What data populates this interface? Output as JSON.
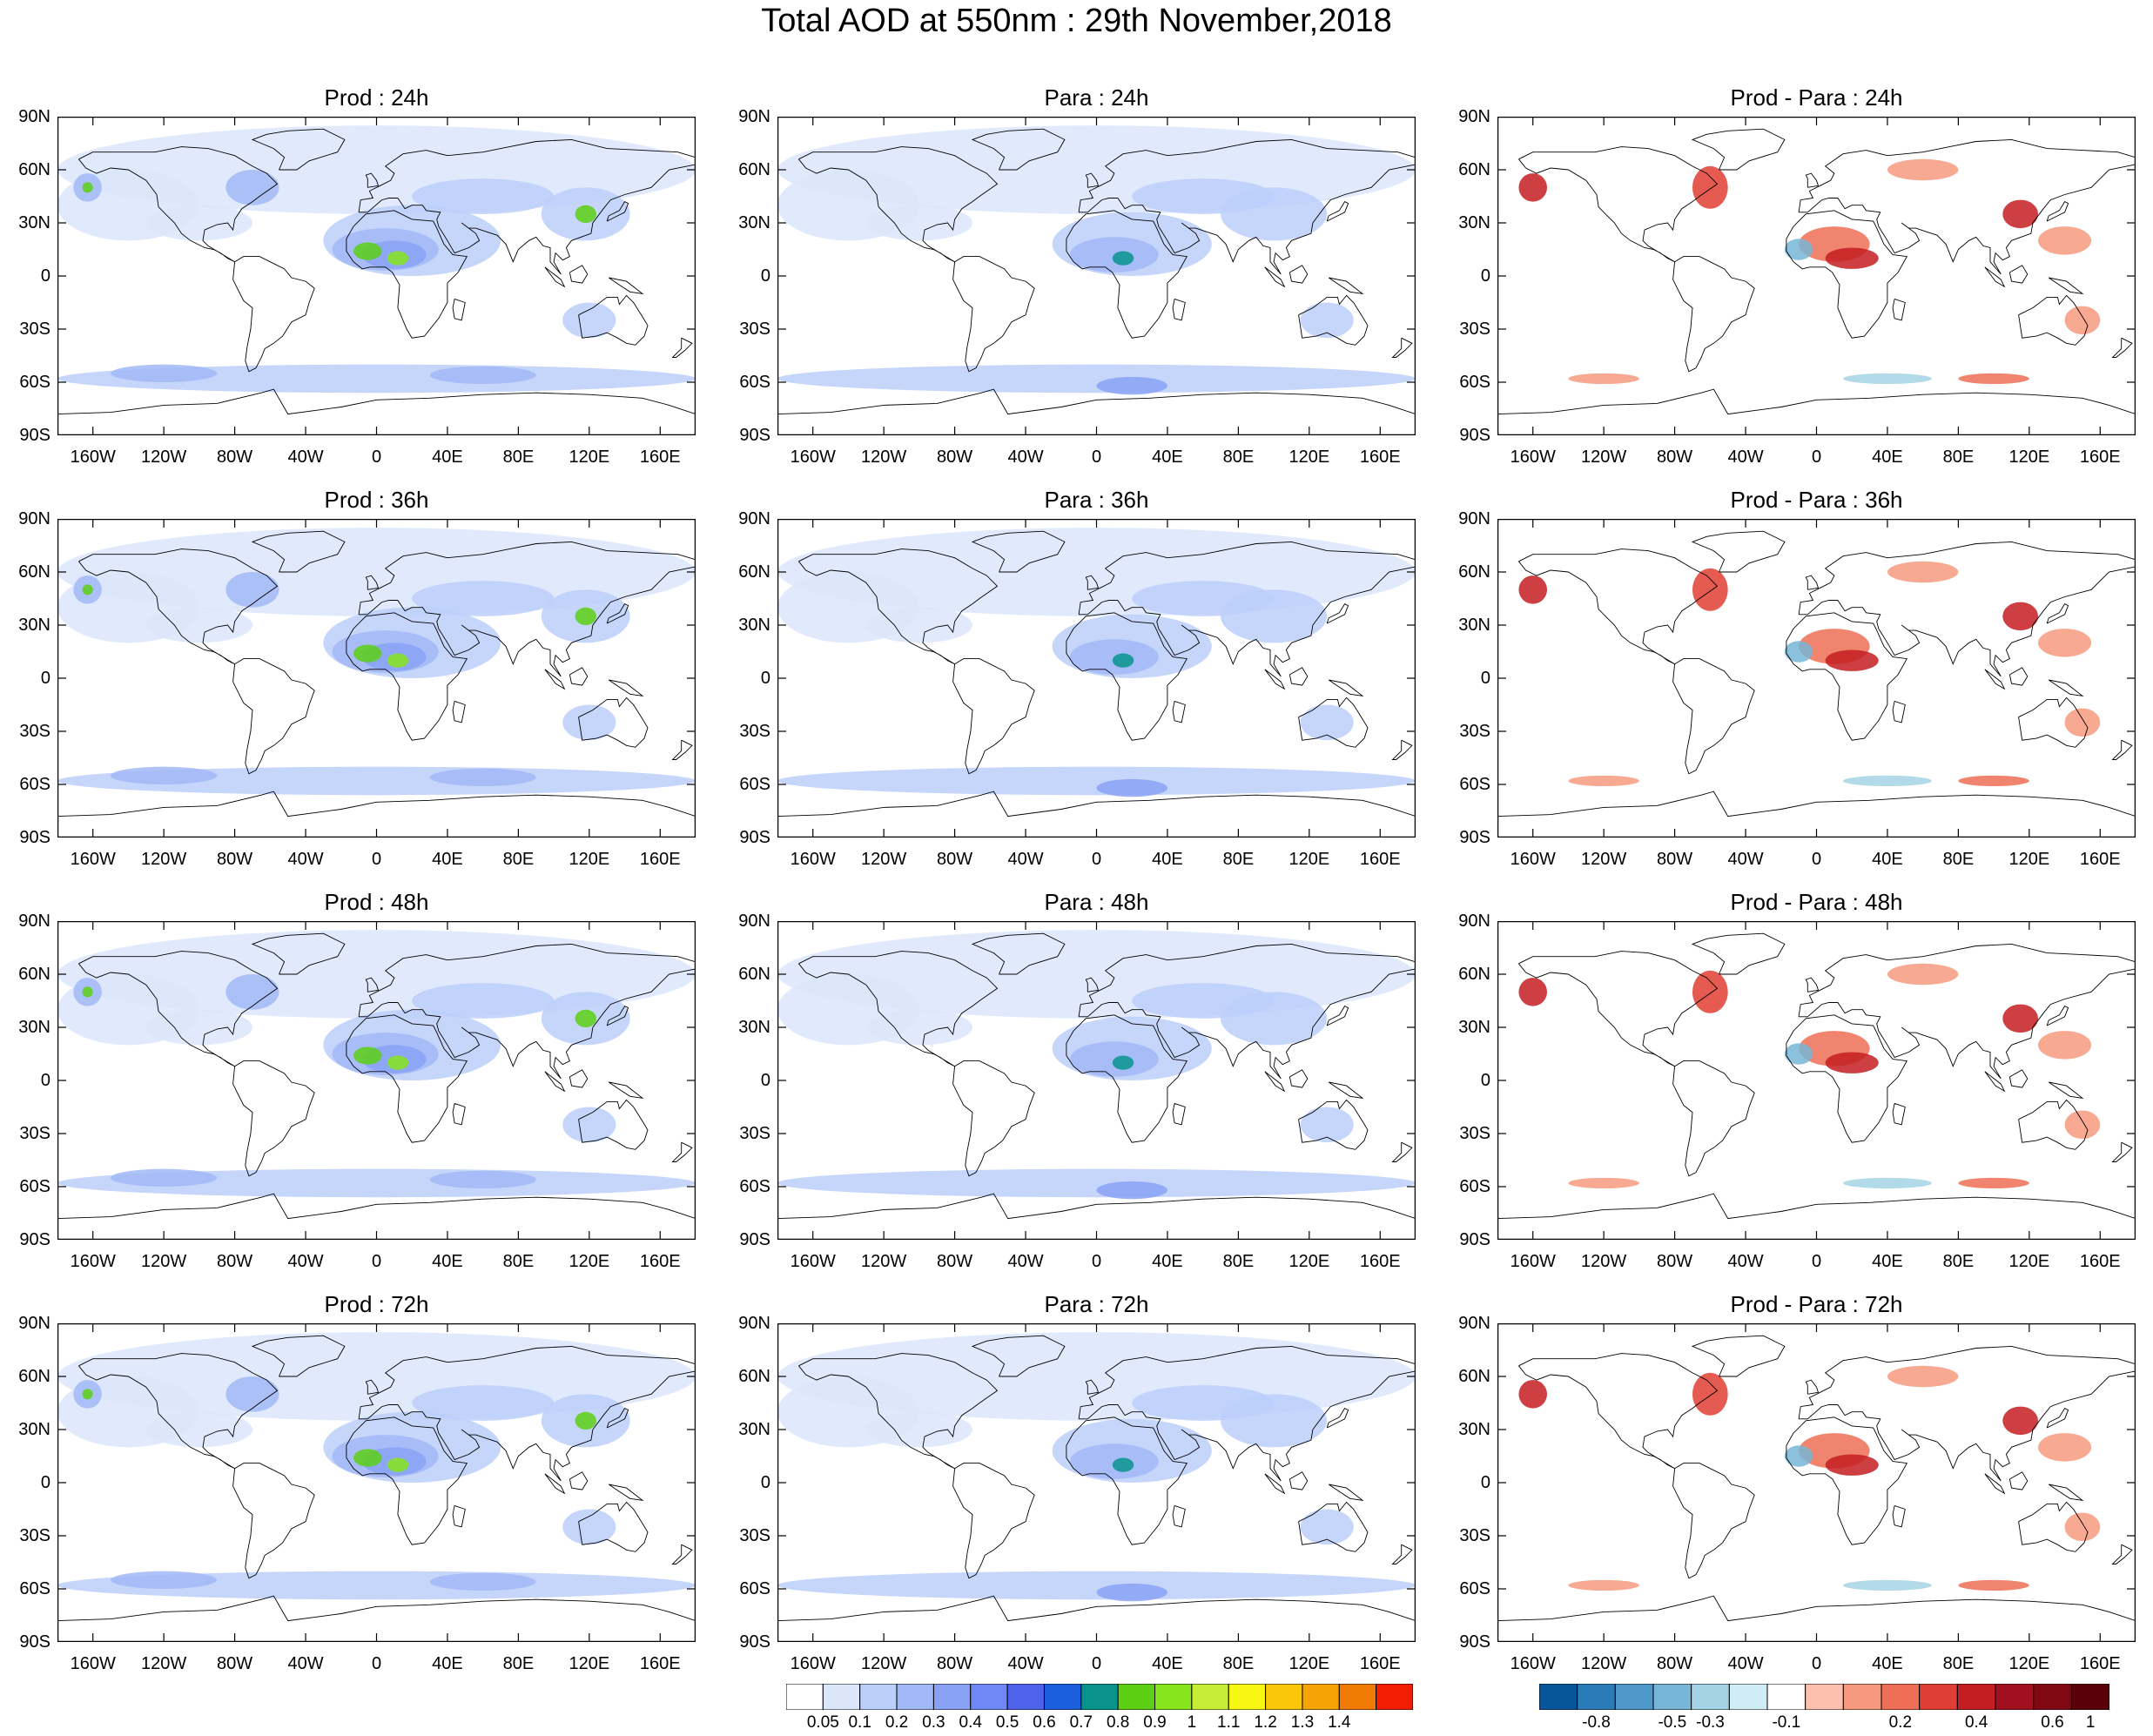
{
  "title": "Total AOD at 550nm : 29th November,2018",
  "lat_labels": [
    "90N",
    "60N",
    "30N",
    "0",
    "30S",
    "60S",
    "90S"
  ],
  "lon_labels": [
    "160W",
    "120W",
    "80W",
    "40W",
    "0",
    "40E",
    "80E",
    "120E",
    "160E"
  ],
  "panels": [
    {
      "title": "Prod : 24h",
      "kind": "prod"
    },
    {
      "title": "Para : 24h",
      "kind": "para"
    },
    {
      "title": "Prod - Para : 24h",
      "kind": "diff"
    },
    {
      "title": "Prod : 36h",
      "kind": "prod"
    },
    {
      "title": "Para : 36h",
      "kind": "para"
    },
    {
      "title": "Prod - Para : 36h",
      "kind": "diff"
    },
    {
      "title": "Prod : 48h",
      "kind": "prod"
    },
    {
      "title": "Para : 48h",
      "kind": "para"
    },
    {
      "title": "Prod - Para : 48h",
      "kind": "diff"
    },
    {
      "title": "Prod : 72h",
      "kind": "prod"
    },
    {
      "title": "Para : 72h",
      "kind": "para"
    },
    {
      "title": "Prod - Para : 72h",
      "kind": "diff"
    }
  ],
  "aod_colorbar": {
    "labels": [
      "0.05",
      "0.1",
      "0.2",
      "0.3",
      "0.4",
      "0.5",
      "0.6",
      "0.7",
      "0.8",
      "0.9",
      "1",
      "1.1",
      "1.2",
      "1.3",
      "1.4"
    ],
    "colors": [
      "#ffffff",
      "#dbe6fb",
      "#bccffa",
      "#a2b9f7",
      "#8aa2f6",
      "#7088f4",
      "#4f62ec",
      "#1b5fdc",
      "#08948c",
      "#5ccf14",
      "#86e51b",
      "#c7ee37",
      "#f7f713",
      "#f8c708",
      "#f6a307",
      "#f07a04",
      "#f31d06"
    ]
  },
  "diff_colorbar": {
    "labels": [
      "-0.8",
      "-0.5",
      "-0.3",
      "-0.1",
      "0.2",
      "0.4",
      "0.6",
      "1"
    ],
    "colors": [
      "#07569a",
      "#2a7cb9",
      "#4d98c8",
      "#77b6d6",
      "#a4d3e5",
      "#d0ecf4",
      "#ffffff",
      "#fbc0ae",
      "#f69a7f",
      "#ee6f55",
      "#e03e33",
      "#c41d22",
      "#a21020",
      "#7f0813",
      "#5a0008"
    ]
  }
}
